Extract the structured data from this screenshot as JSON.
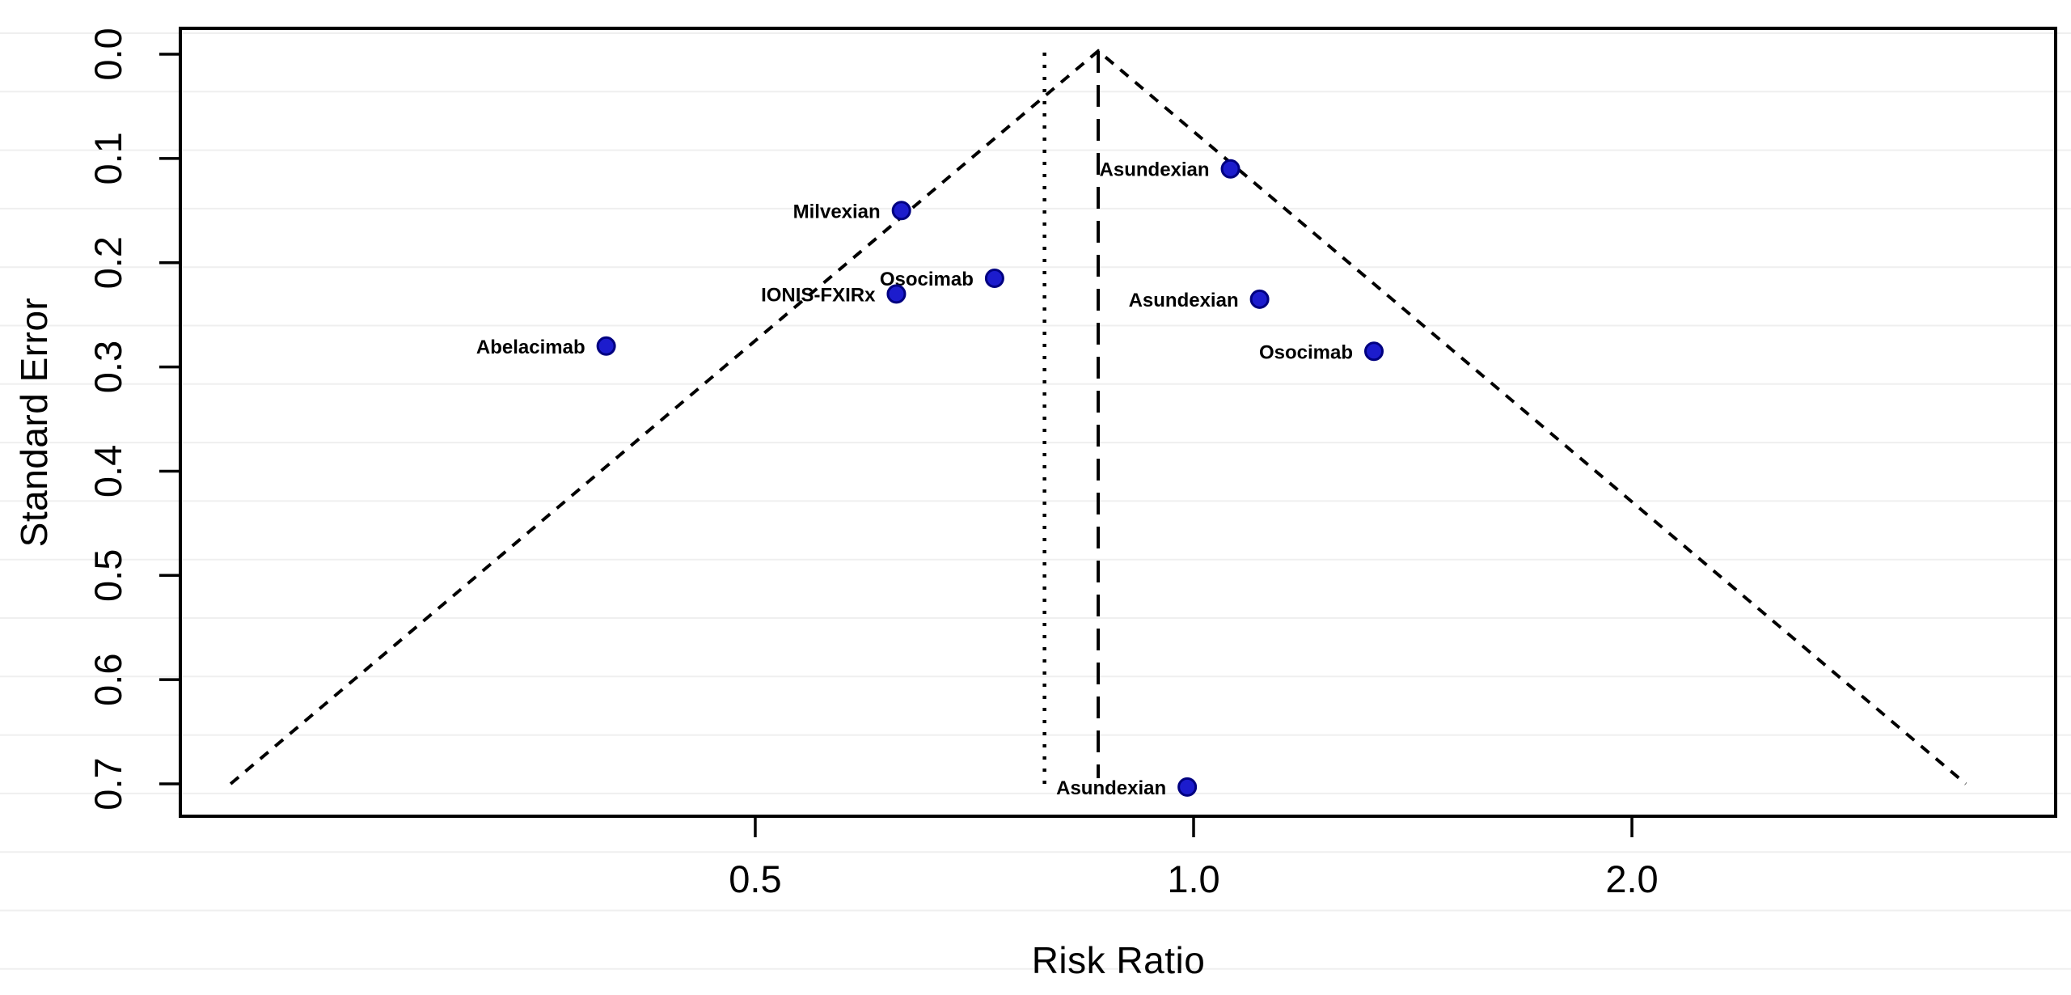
{
  "figure": {
    "background": "#ffffff",
    "axis_color": "#000000",
    "point_fill": "#1c1ccd",
    "point_stroke": "#000080",
    "band_color": "#efefef"
  },
  "chart_data": {
    "type": "scatter",
    "subtype": "funnel-plot",
    "title": "",
    "xlabel": "Risk Ratio",
    "ylabel": "Standard Error",
    "x_scale": "log",
    "y_inverted": true,
    "grid": "off",
    "legend": "none",
    "xlim": [
      0.2,
      3.9
    ],
    "ylim": [
      0.0,
      0.73
    ],
    "x_ticks": [
      0.5,
      1.0,
      2.0
    ],
    "x_tick_labels": [
      "0.5",
      "1.0",
      "2.0"
    ],
    "y_ticks": [
      0.0,
      0.1,
      0.2,
      0.3,
      0.4,
      0.5,
      0.6,
      0.7
    ],
    "y_tick_labels": [
      "0.0",
      "0.1",
      "0.2",
      "0.3",
      "0.4",
      "0.5",
      "0.6",
      "0.7"
    ],
    "points": [
      {
        "label": "Asundexian",
        "risk_ratio": 1.06,
        "standard_error": 0.11
      },
      {
        "label": "Milvexian",
        "risk_ratio": 0.63,
        "standard_error": 0.15
      },
      {
        "label": "Osocimab",
        "risk_ratio": 0.73,
        "standard_error": 0.215
      },
      {
        "label": "IONIS-FXIRx",
        "risk_ratio": 0.625,
        "standard_error": 0.23
      },
      {
        "label": "Asundexian",
        "risk_ratio": 1.11,
        "standard_error": 0.235
      },
      {
        "label": "Abelacimab",
        "risk_ratio": 0.395,
        "standard_error": 0.28
      },
      {
        "label": "Osocimab",
        "risk_ratio": 1.33,
        "standard_error": 0.285
      },
      {
        "label": "Asundexian",
        "risk_ratio": 0.99,
        "standard_error": 0.703
      }
    ],
    "reference_lines": {
      "pooled_estimate_rr_dashed": 0.86,
      "secondary_rr_dotted": 0.79
    },
    "funnel": {
      "apex_rr": 0.86,
      "se_max": 0.7,
      "z": 1.96,
      "line_style": "dashed"
    }
  }
}
